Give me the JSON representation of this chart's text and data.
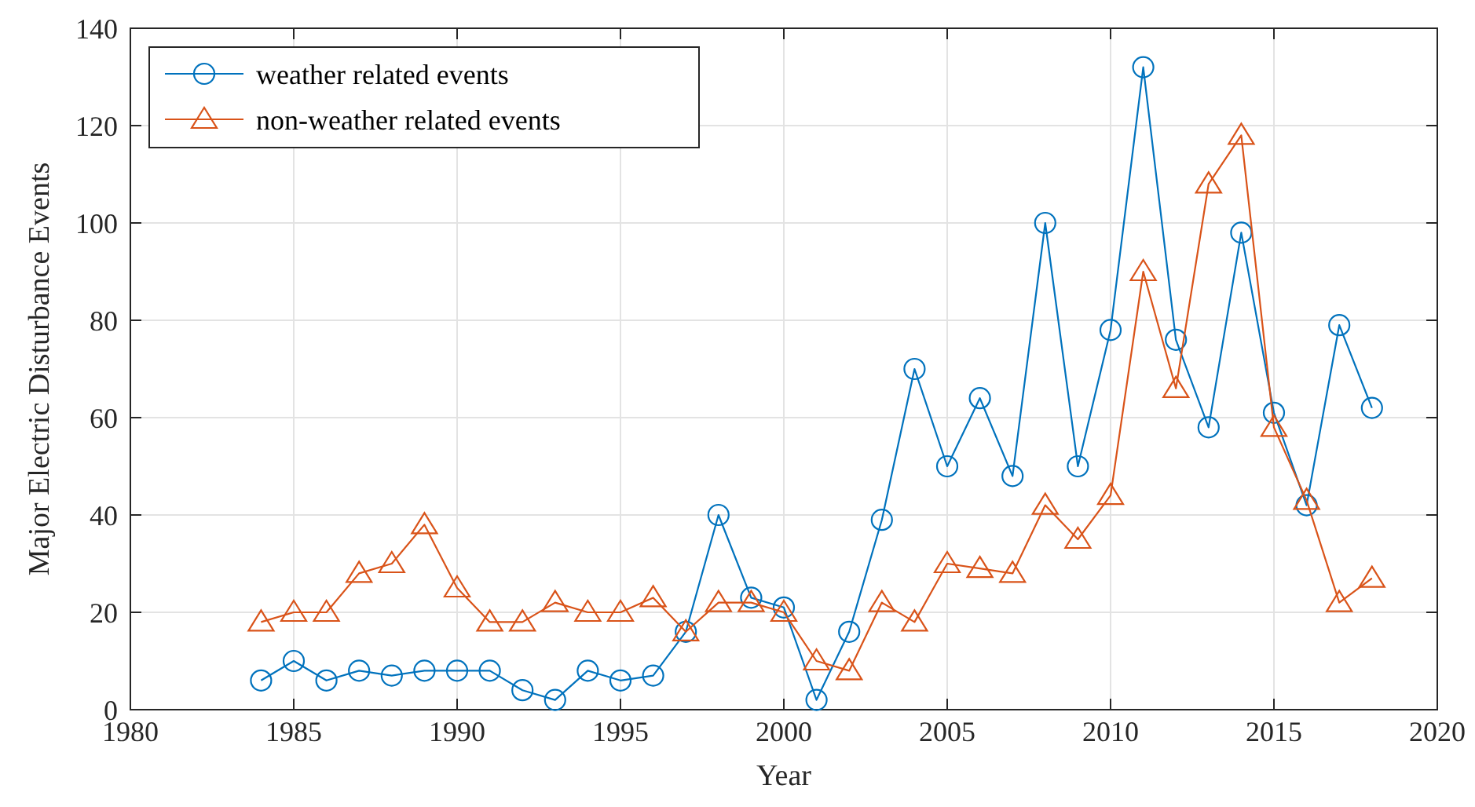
{
  "chart_data": {
    "type": "line",
    "xlabel": "Year",
    "ylabel": "Major Electric Disturbance Events",
    "x": [
      1984,
      1985,
      1986,
      1987,
      1988,
      1989,
      1990,
      1991,
      1992,
      1993,
      1994,
      1995,
      1996,
      1997,
      1998,
      1999,
      2000,
      2001,
      2002,
      2003,
      2004,
      2005,
      2006,
      2007,
      2008,
      2009,
      2010,
      2011,
      2012,
      2013,
      2014,
      2015,
      2016,
      2017,
      2018
    ],
    "series": [
      {
        "name": "weather related events",
        "color": "#0072bd",
        "marker": "circle",
        "values": [
          6,
          10,
          6,
          8,
          7,
          8,
          8,
          8,
          4,
          2,
          8,
          6,
          7,
          16,
          40,
          23,
          21,
          2,
          16,
          39,
          70,
          50,
          64,
          48,
          100,
          50,
          78,
          132,
          76,
          58,
          98,
          61,
          42,
          79,
          62
        ]
      },
      {
        "name": "non-weather related events",
        "color": "#d95319",
        "marker": "triangle",
        "values": [
          18,
          20,
          20,
          28,
          30,
          38,
          25,
          18,
          18,
          22,
          20,
          20,
          23,
          16,
          22,
          22,
          20,
          10,
          8,
          22,
          18,
          30,
          29,
          28,
          42,
          35,
          44,
          90,
          66,
          108,
          118,
          58,
          43,
          22,
          27
        ]
      }
    ],
    "xlim": [
      1980,
      2020
    ],
    "xticks": [
      1980,
      1985,
      1990,
      1995,
      2000,
      2005,
      2010,
      2015,
      2020
    ],
    "ylim": [
      0,
      140
    ],
    "yticks": [
      0,
      20,
      40,
      60,
      80,
      100,
      120,
      140
    ],
    "grid": true,
    "legend": "top left",
    "line_style": "solid"
  }
}
